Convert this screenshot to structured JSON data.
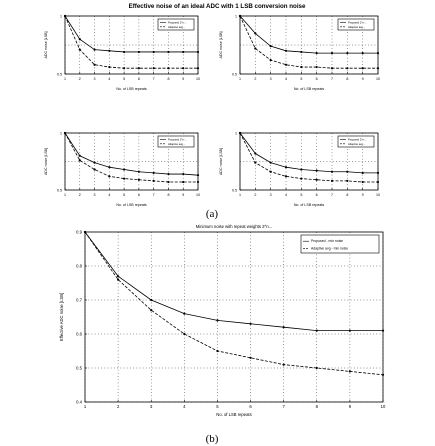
{
  "figure": {
    "top_title": "Effective noise of an ideal ADC with 1 LSB conversion noise",
    "caption_a": "(a)",
    "caption_b": "(b)"
  },
  "chart_data": [
    {
      "type": "line",
      "panel": "a1",
      "title": "",
      "xlabel": "No. of LSB repeats",
      "ylabel": "ADC noise [LSB]",
      "xlim": [
        1,
        10
      ],
      "ylim": [
        0.5,
        1
      ],
      "xticks": [
        "1",
        "2",
        "3",
        "4",
        "5",
        "6",
        "7",
        "8",
        "9",
        "10"
      ],
      "yticks": [
        "0.5",
        "1"
      ],
      "grid": true,
      "legend_placement": "top-right",
      "legend": [
        "Proposed 2^n-...",
        "Adaptive avg..."
      ],
      "series": [
        {
          "values_x": [
            1,
            2,
            3,
            4,
            5,
            6,
            7,
            8,
            9,
            10
          ],
          "values": [
            1,
            0.8,
            0.71,
            0.7,
            0.69,
            0.69,
            0.69,
            0.69,
            0.69,
            0.69
          ],
          "style": "solid"
        },
        {
          "values_x": [
            1,
            2,
            3,
            4,
            5,
            6,
            7,
            8,
            9,
            10
          ],
          "values": [
            1,
            0.71,
            0.58,
            0.56,
            0.55,
            0.55,
            0.55,
            0.55,
            0.55,
            0.55
          ],
          "style": "dashed"
        }
      ]
    },
    {
      "type": "line",
      "panel": "a2",
      "title": "",
      "xlabel": "No. of LSB repeats",
      "ylabel": "ADC noise [LSB]",
      "xlim": [
        1,
        10
      ],
      "ylim": [
        0.5,
        1
      ],
      "xticks": [
        "1",
        "2",
        "3",
        "4",
        "5",
        "6",
        "7",
        "8",
        "9",
        "10"
      ],
      "yticks": [
        "0.5",
        "1"
      ],
      "grid": true,
      "legend_placement": "top-right",
      "legend": [
        "Proposed 2^n-...",
        "Adaptive avg..."
      ],
      "series": [
        {
          "values_x": [
            1,
            2,
            3,
            4,
            5,
            6,
            7,
            8,
            9,
            10
          ],
          "values": [
            1,
            0.85,
            0.74,
            0.7,
            0.69,
            0.68,
            0.68,
            0.68,
            0.68,
            0.68
          ],
          "style": "solid"
        },
        {
          "values_x": [
            1,
            2,
            3,
            4,
            5,
            6,
            7,
            8,
            9,
            10
          ],
          "values": [
            1,
            0.72,
            0.62,
            0.58,
            0.56,
            0.56,
            0.55,
            0.55,
            0.55,
            0.55
          ],
          "style": "dashed"
        }
      ]
    },
    {
      "type": "line",
      "panel": "a3",
      "title": "",
      "xlabel": "No. of LSB repeats",
      "ylabel": "ADC noise [LSB]",
      "xlim": [
        1,
        10
      ],
      "ylim": [
        0.5,
        1
      ],
      "xticks": [
        "1",
        "2",
        "3",
        "4",
        "5",
        "6",
        "7",
        "8",
        "9",
        "10"
      ],
      "yticks": [
        "0.5",
        "1"
      ],
      "grid": true,
      "legend_placement": "top-right",
      "legend": [
        "Proposed 2^n-...",
        "Adaptive avg..."
      ],
      "series": [
        {
          "values_x": [
            1,
            2,
            3,
            4,
            5,
            6,
            7,
            8,
            9,
            10
          ],
          "values": [
            1,
            0.8,
            0.74,
            0.7,
            0.68,
            0.66,
            0.65,
            0.64,
            0.64,
            0.63
          ],
          "style": "solid"
        },
        {
          "values_x": [
            1,
            2,
            3,
            4,
            5,
            6,
            7,
            8,
            9,
            10
          ],
          "values": [
            1,
            0.76,
            0.68,
            0.62,
            0.6,
            0.59,
            0.58,
            0.57,
            0.57,
            0.57
          ],
          "style": "dashed"
        }
      ]
    },
    {
      "type": "line",
      "panel": "a4",
      "title": "",
      "xlabel": "No. of LSB repeats",
      "ylabel": "ADC noise [LSB]",
      "xlim": [
        1,
        10
      ],
      "ylim": [
        0.5,
        1
      ],
      "xticks": [
        "1",
        "2",
        "3",
        "4",
        "5",
        "6",
        "7",
        "8",
        "9",
        "10"
      ],
      "yticks": [
        "0.5",
        "1"
      ],
      "grid": true,
      "legend_placement": "top-right",
      "legend": [
        "Proposed 2^n-...",
        "Adaptive avg..."
      ],
      "series": [
        {
          "values_x": [
            1,
            2,
            3,
            4,
            5,
            6,
            7,
            8,
            9,
            10
          ],
          "values": [
            1,
            0.82,
            0.74,
            0.7,
            0.68,
            0.67,
            0.66,
            0.66,
            0.65,
            0.65
          ],
          "style": "solid"
        },
        {
          "values_x": [
            1,
            2,
            3,
            4,
            5,
            6,
            7,
            8,
            9,
            10
          ],
          "values": [
            1,
            0.74,
            0.66,
            0.62,
            0.6,
            0.59,
            0.58,
            0.58,
            0.57,
            0.57
          ],
          "style": "dashed"
        }
      ]
    },
    {
      "type": "line",
      "panel": "b",
      "title": "Minimum noise with repeat weights 2^n...",
      "xlabel": "No. of LSB repeats",
      "ylabel": "Effective ADC noise [LSB]",
      "xlim": [
        1,
        10
      ],
      "ylim": [
        0.4,
        0.9
      ],
      "xticks": [
        "1",
        "2",
        "3",
        "4",
        "5",
        "6",
        "7",
        "8",
        "9",
        "10"
      ],
      "yticks": [
        "0.4",
        "0.5",
        "0.6",
        "0.7",
        "0.8",
        "0.9"
      ],
      "grid": true,
      "legend_placement": "top-right",
      "legend": [
        "Proposed - min noise",
        "Adaptive avg - min noise"
      ],
      "series": [
        {
          "values_x": [
            1,
            2,
            3,
            4,
            5,
            6,
            7,
            8,
            9,
            10
          ],
          "values": [
            0.9,
            0.77,
            0.7,
            0.66,
            0.64,
            0.63,
            0.62,
            0.61,
            0.61,
            0.61
          ],
          "style": "solid"
        },
        {
          "values_x": [
            1,
            2,
            3,
            4,
            5,
            6,
            7,
            8,
            9,
            10
          ],
          "values": [
            0.9,
            0.76,
            0.67,
            0.6,
            0.55,
            0.53,
            0.51,
            0.5,
            0.49,
            0.48
          ],
          "style": "dashed"
        }
      ]
    }
  ]
}
